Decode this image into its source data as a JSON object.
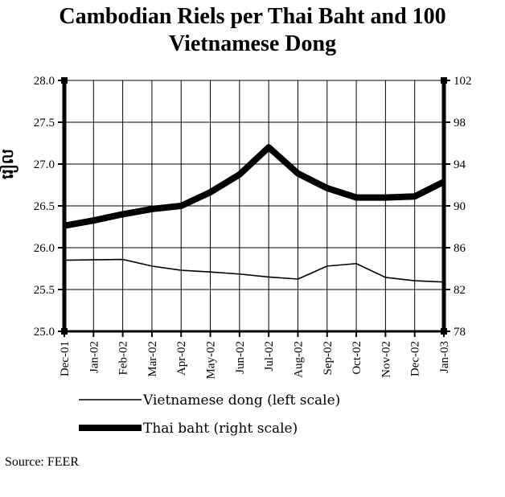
{
  "title_lines": [
    "Cambodian Riels per Thai Baht and 100",
    "Vietnamese Dong"
  ],
  "source": "Source: FEER",
  "chart_data": {
    "type": "line",
    "title": "Cambodian Riels per Thai Baht and 100 Vietnamese Dong",
    "ylabel_left": "រៀល",
    "categories": [
      "Dec-01",
      "Jan-02",
      "Feb-02",
      "Mar-02",
      "Apr-02",
      "May-02",
      "Jun-02",
      "Jul-02",
      "Aug-02",
      "Sep-02",
      "Oct-02",
      "Nov-02",
      "Dec-02",
      "Jan-03"
    ],
    "y_left": {
      "min": 25.0,
      "max": 28.0,
      "ticks": [
        "25.0",
        "25.5",
        "26.0",
        "26.5",
        "27.0",
        "27.5",
        "28.0"
      ]
    },
    "y_right": {
      "min": 78,
      "max": 102,
      "ticks": [
        "78",
        "82",
        "86",
        "90",
        "94",
        "98",
        "102"
      ]
    },
    "grid": true,
    "legend_position": "bottom",
    "series": [
      {
        "name": "Vietnamese dong (left scale)",
        "axis": "left",
        "color": "#000000",
        "values": [
          25.85,
          25.855,
          25.86,
          25.78,
          25.73,
          25.71,
          25.685,
          25.65,
          25.625,
          25.78,
          25.81,
          25.645,
          25.605,
          25.59
        ]
      },
      {
        "name": "Thai baht (right scale)",
        "axis": "right",
        "color": "#000000",
        "values": [
          88.1,
          88.6,
          89.2,
          89.7,
          90.0,
          91.3,
          93.0,
          95.6,
          93.1,
          91.7,
          90.8,
          90.8,
          90.9,
          92.3
        ]
      }
    ]
  }
}
